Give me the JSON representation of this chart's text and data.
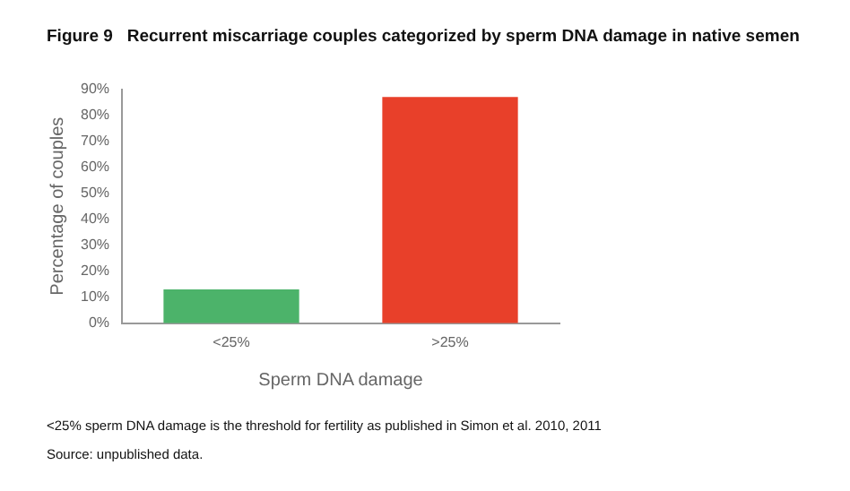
{
  "chart_data": {
    "type": "bar",
    "title": "Figure 9   Recurrent miscarriage couples categorized by sperm DNA damage in native semen",
    "categories": [
      "<25%",
      ">25%"
    ],
    "values": [
      13,
      87
    ],
    "colors": [
      "#4cb36a",
      "#e8402a"
    ],
    "xlabel": "Sperm DNA damage",
    "ylabel": "Percentage of couples",
    "ylim": [
      0,
      90
    ],
    "yticks": [
      {
        "value": 0,
        "label": "0%"
      },
      {
        "value": 10,
        "label": "10%"
      },
      {
        "value": 20,
        "label": "20%"
      },
      {
        "value": 30,
        "label": "30%"
      },
      {
        "value": 40,
        "label": "40%"
      },
      {
        "value": 50,
        "label": "50%"
      },
      {
        "value": 60,
        "label": "60%"
      },
      {
        "value": 70,
        "label": "70%"
      },
      {
        "value": 80,
        "label": "80%"
      },
      {
        "value": 90,
        "label": "90%"
      }
    ],
    "grid": false,
    "legend": false,
    "annotations": [
      "<25% sperm DNA damage is the threshold for fertility as published in Simon et al. 2010, 2011",
      "Source: unpublished data."
    ]
  }
}
